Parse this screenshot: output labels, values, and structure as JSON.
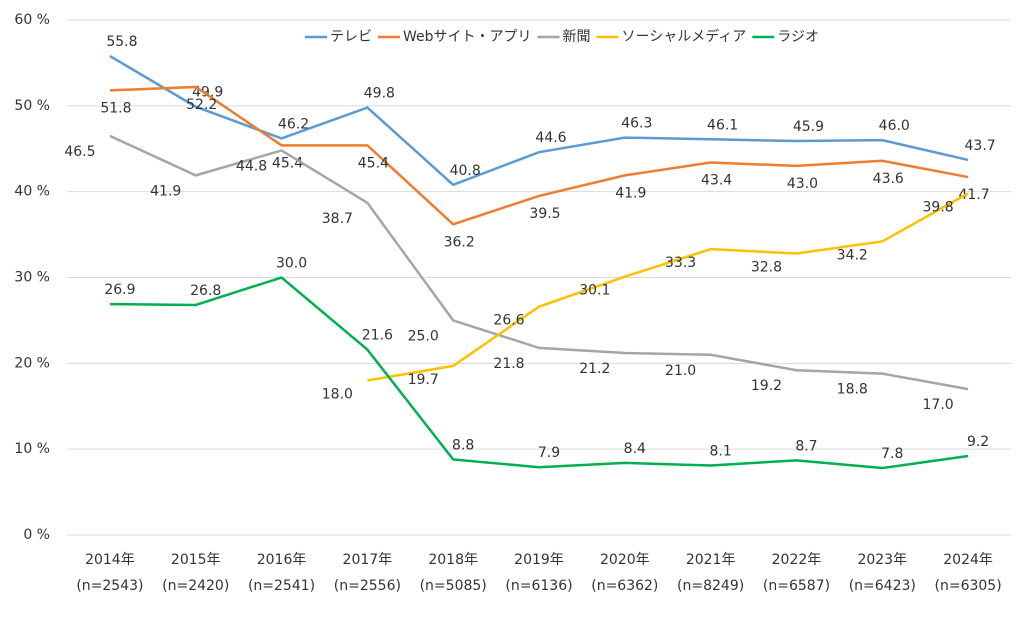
{
  "chart_data": {
    "type": "line",
    "categories": [
      "2014年",
      "2015年",
      "2016年",
      "2017年",
      "2018年",
      "2019年",
      "2020年",
      "2021年",
      "2022年",
      "2023年",
      "2024年"
    ],
    "category_notes": [
      "(n=2543)",
      "(n=2420)",
      "(n=2541)",
      "(n=2556)",
      "(n=5085)",
      "(n=6136)",
      "(n=6362)",
      "(n=8249)",
      "(n=6587)",
      "(n=6423)",
      "(n=6305)"
    ],
    "ylim": [
      0,
      60
    ],
    "yticks": [
      {
        "value": 0,
        "label": "0 %"
      },
      {
        "value": 10,
        "label": "10 %"
      },
      {
        "value": 20,
        "label": "20 %"
      },
      {
        "value": 30,
        "label": "30 %"
      },
      {
        "value": 40,
        "label": "40 %"
      },
      {
        "value": 50,
        "label": "50 %"
      },
      {
        "value": 60,
        "label": "60 %"
      }
    ],
    "grid": true,
    "legend": "top",
    "series": [
      {
        "name": "テレビ",
        "color": "#5b9bd5",
        "values": [
          55.8,
          49.9,
          46.2,
          49.8,
          40.8,
          44.6,
          46.3,
          46.1,
          45.9,
          46.0,
          43.7
        ],
        "value_labels": [
          "55.8",
          "49.9",
          "46.2",
          "49.8",
          "40.8",
          "44.6",
          "46.3",
          "46.1",
          "45.9",
          "46.0",
          "43.7"
        ]
      },
      {
        "name": "Webサイト・アプリ",
        "color": "#ed7d31",
        "values": [
          51.8,
          52.2,
          45.4,
          45.4,
          36.2,
          39.5,
          41.9,
          43.4,
          43.0,
          43.6,
          41.7
        ],
        "value_labels": [
          "51.8",
          "52.2",
          "45.4",
          "45.4",
          "36.2",
          "39.5",
          "41.9",
          "43.4",
          "43.0",
          "43.6",
          "41.7"
        ]
      },
      {
        "name": "新聞",
        "color": "#a5a5a5",
        "values": [
          46.5,
          41.9,
          44.8,
          38.7,
          25.0,
          21.8,
          21.2,
          21.0,
          19.2,
          18.8,
          17.0
        ],
        "value_labels": [
          "46.5",
          "41.9",
          "44.8",
          "38.7",
          "25.0",
          "21.8",
          "21.2",
          "21.0",
          "19.2",
          "18.8",
          "17.0"
        ]
      },
      {
        "name": "ソーシャルメディア",
        "color": "#ffc000",
        "values": [
          null,
          null,
          null,
          18.0,
          19.7,
          26.6,
          30.1,
          33.3,
          32.8,
          34.2,
          39.8
        ],
        "value_labels": [
          null,
          null,
          null,
          "18.0",
          "19.7",
          "26.6",
          "30.1",
          "33.3",
          "32.8",
          "34.2",
          "39.8"
        ]
      },
      {
        "name": "ラジオ",
        "color": "#00b050",
        "values": [
          26.9,
          26.8,
          30.0,
          21.6,
          8.8,
          7.9,
          8.4,
          8.1,
          8.7,
          7.8,
          9.2
        ],
        "value_labels": [
          "26.9",
          "26.8",
          "30.0",
          "21.6",
          "8.8",
          "7.9",
          "8.4",
          "8.1",
          "8.7",
          "7.8",
          "9.2"
        ]
      }
    ]
  }
}
